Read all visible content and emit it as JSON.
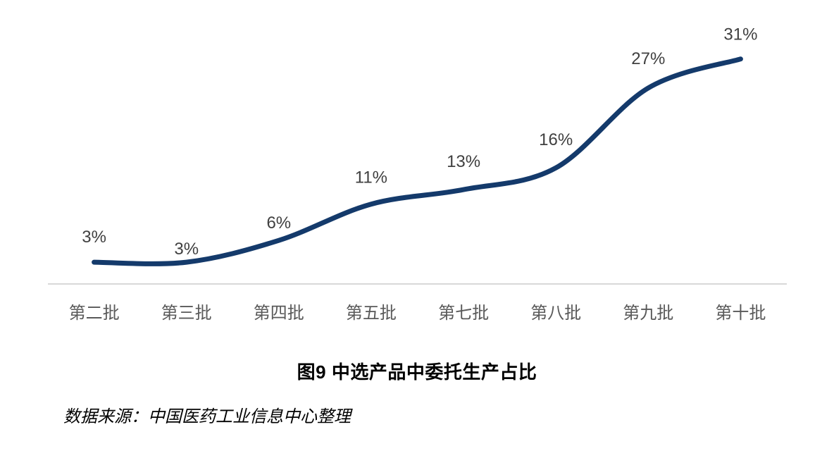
{
  "chart_data": {
    "type": "line",
    "title": "图9 中选产品中委托生产占比",
    "source": "数据来源：中国医药工业信息中心整理",
    "categories": [
      "第二批",
      "第三批",
      "第四批",
      "第五批",
      "第七批",
      "第八批",
      "第九批",
      "第十批"
    ],
    "values": [
      3,
      3,
      6,
      11,
      13,
      16,
      27,
      31
    ],
    "data_labels": [
      "3%",
      "3%",
      "6%",
      "11%",
      "13%",
      "16%",
      "27%",
      "31%"
    ],
    "ylim": [
      0,
      36
    ],
    "grid": false,
    "legend": "none",
    "smooth": true,
    "colors": {
      "line": "#143A6B",
      "data_label": "#404040",
      "axis_label": "#595959",
      "axis_line": "#D8D8D8",
      "title": "#000000",
      "source": "#000000"
    }
  }
}
